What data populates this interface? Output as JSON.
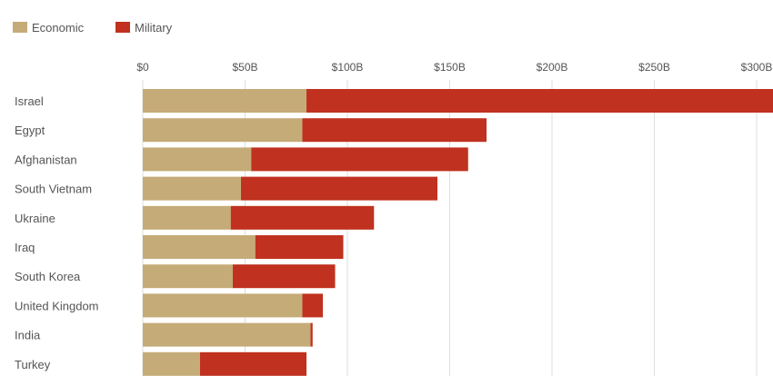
{
  "colors": {
    "economic": "#c5ab78",
    "military": "#c0311f",
    "grid": "#dedede"
  },
  "chart_data": {
    "type": "bar",
    "orientation": "horizontal",
    "stacked": true,
    "title": "",
    "xlabel": "",
    "ylabel": "",
    "xlim": [
      0,
      310
    ],
    "x_unit": "B",
    "grid": true,
    "legend": "top-left",
    "ticks": [
      {
        "value": 0,
        "label": "$0"
      },
      {
        "value": 50,
        "label": "$50B"
      },
      {
        "value": 100,
        "label": "$100B"
      },
      {
        "value": 150,
        "label": "$150B"
      },
      {
        "value": 200,
        "label": "$200B"
      },
      {
        "value": 250,
        "label": "$250B"
      },
      {
        "value": 300,
        "label": "$300B"
      }
    ],
    "categories": [
      "Israel",
      "Egypt",
      "Afghanistan",
      "South Vietnam",
      "Ukraine",
      "Iraq",
      "South Korea",
      "United Kingdom",
      "India",
      "Turkey"
    ],
    "series": [
      {
        "name": "Economic",
        "values": [
          80,
          78,
          53,
          48,
          43,
          55,
          44,
          78,
          82,
          28
        ]
      },
      {
        "name": "Military",
        "values": [
          230,
          90,
          106,
          96,
          70,
          43,
          50,
          10,
          1,
          52
        ]
      }
    ]
  }
}
